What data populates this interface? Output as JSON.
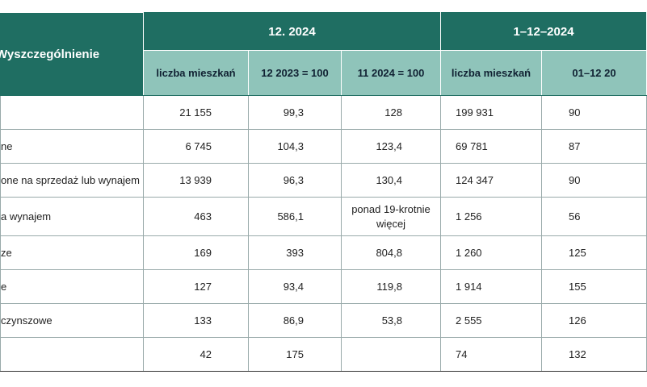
{
  "table": {
    "header": {
      "label": "Wyszczególnienie",
      "groups": [
        "12. 2024",
        "1–12–2024"
      ],
      "columns": [
        "liczba mieszkań",
        "12 2023 = 100",
        "11 2024 = 100",
        "liczba mieszkań",
        "01–12 20"
      ]
    },
    "rows": [
      {
        "cells": [
          "21 155",
          "99,3",
          "128",
          "199 931",
          "90"
        ]
      },
      {
        "label": "ne",
        "cells": [
          "6 745",
          "104,3",
          "123,4",
          "69 781",
          "87"
        ]
      },
      {
        "label": "one na sprzedaż lub wynajem",
        "cells": [
          "13 939",
          "96,3",
          "130,4",
          "124 347",
          "90"
        ]
      },
      {
        "label": "a wynajem",
        "cells": [
          "463",
          "586,1",
          "ponad 19-krotnie więcej",
          "1 256",
          "56"
        ]
      },
      {
        "label": "ze",
        "cells": [
          "169",
          "393",
          "804,8",
          "1 260",
          "125"
        ]
      },
      {
        "label": "e",
        "cells": [
          "127",
          "93,4",
          "119,8",
          "1 914",
          "155"
        ]
      },
      {
        "label": "czynszowe",
        "cells": [
          "133",
          "86,9",
          "53,8",
          "2 555",
          "126"
        ]
      },
      {
        "cells": [
          "42",
          "175",
          null,
          "74",
          "132"
        ]
      }
    ]
  }
}
